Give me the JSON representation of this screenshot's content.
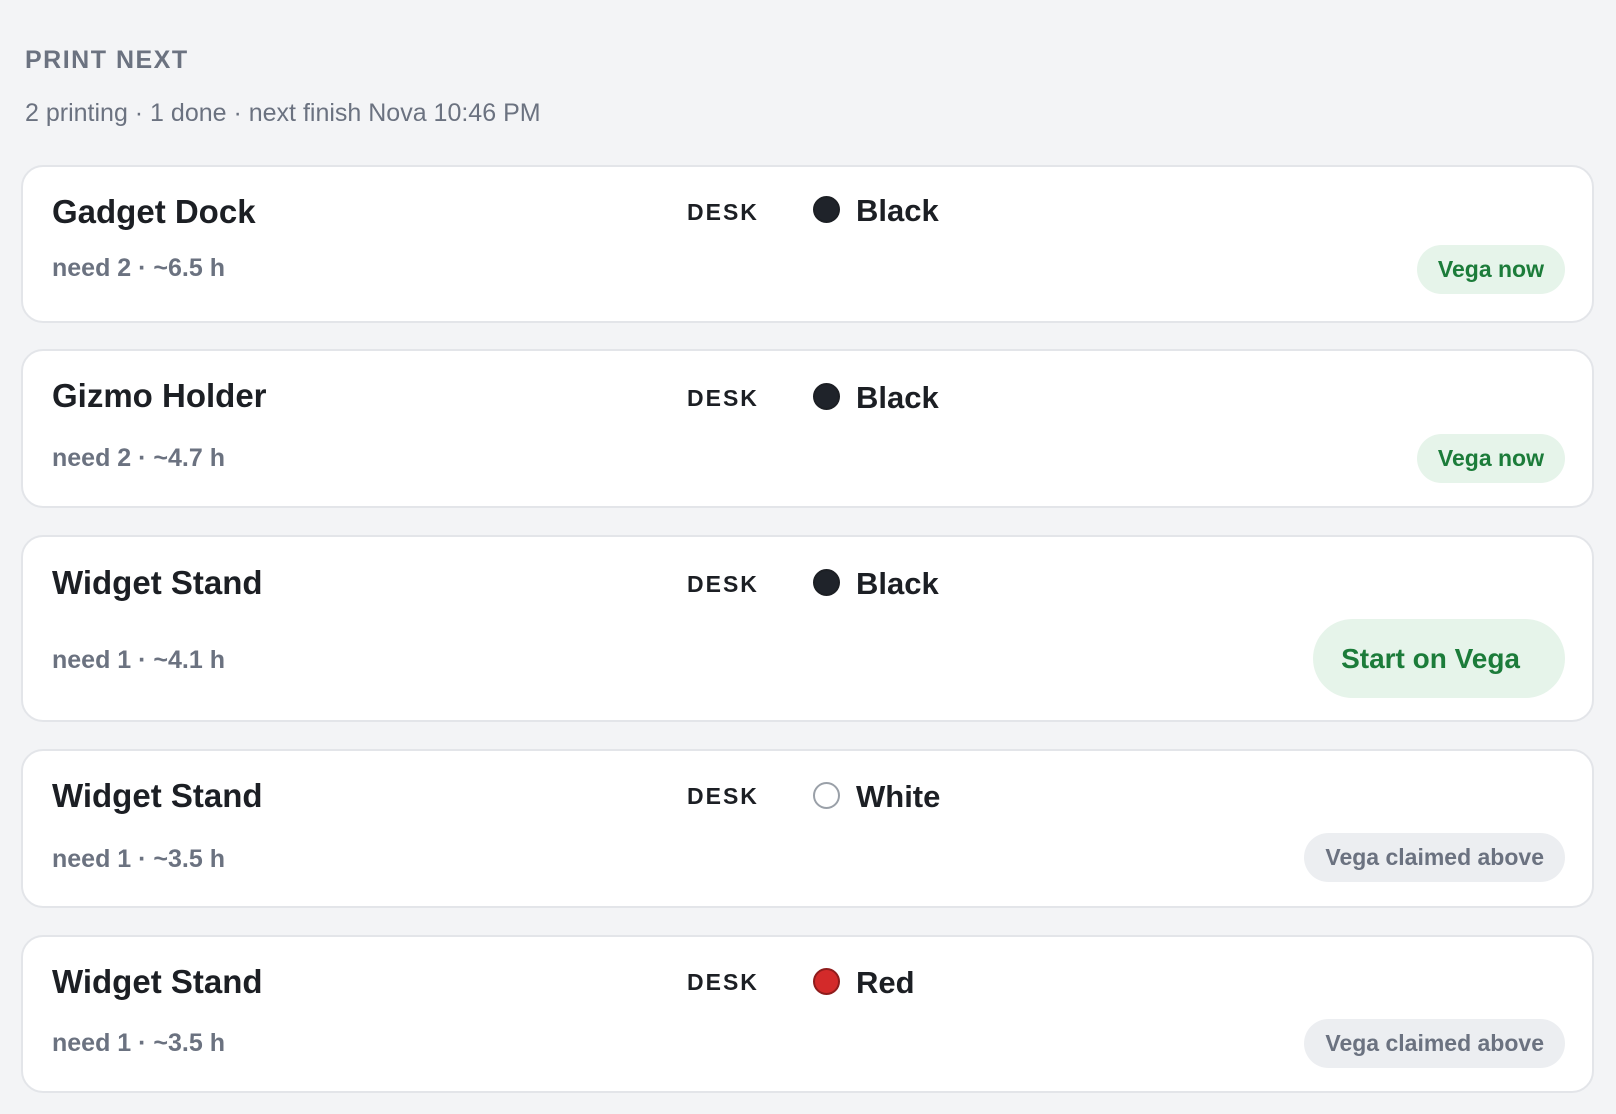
{
  "header": {
    "title": "PRINT NEXT",
    "subtitle": "2 printing · 1 done · next finish Nova 10:46 PM"
  },
  "items": [
    {
      "name": "Gadget Dock",
      "location": "DESK",
      "color": "Black",
      "swatch": "#1f232a",
      "detail": "need 2 · ~6.5 h",
      "action": "Vega now"
    },
    {
      "name": "Gizmo Holder",
      "location": "DESK",
      "color": "Black",
      "swatch": "#1f232a",
      "detail": "need 2 · ~4.7 h",
      "action": "Vega now"
    },
    {
      "name": "Widget Stand",
      "location": "DESK",
      "color": "Black",
      "swatch": "#1f232a",
      "detail": "need 1 · ~4.1 h",
      "action": "Start on Vega"
    },
    {
      "name": "Widget Stand",
      "location": "DESK",
      "color": "White",
      "swatch": "#ffffff",
      "detail": "need 1 · ~3.5 h",
      "action": "Vega claimed above"
    },
    {
      "name": "Widget Stand",
      "location": "DESK",
      "color": "Red",
      "swatch": "#d32a2a",
      "detail": "need 1 · ~3.5 h",
      "action": "Vega claimed above"
    }
  ]
}
